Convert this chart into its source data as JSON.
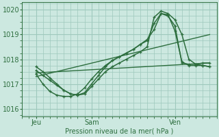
{
  "bg_color": "#cce8e0",
  "grid_color": "#9ec8bc",
  "line_color": "#2d6e3e",
  "title": "Pression niveau de la mer( hPa )",
  "ylim": [
    1015.7,
    1020.3
  ],
  "yticks": [
    1016,
    1017,
    1018,
    1019,
    1020
  ],
  "xlim": [
    0,
    56
  ],
  "xtick_positions": [
    4,
    20,
    44
  ],
  "xtick_labels": [
    "Jeu",
    "Sam",
    "Ven"
  ],
  "xminor": 2,
  "yminor": 0.25,
  "series": [
    {
      "x": [
        4,
        54
      ],
      "y": [
        1017.45,
        1017.85
      ],
      "marker": null,
      "lw": 1.0
    },
    {
      "x": [
        4,
        54
      ],
      "y": [
        1017.3,
        1019.0
      ],
      "marker": null,
      "lw": 1.0
    },
    {
      "x": [
        4,
        6,
        8,
        10,
        12,
        14,
        16,
        18,
        20,
        22,
        24,
        26,
        28,
        30,
        32,
        34,
        36,
        38,
        40,
        42,
        44,
        46,
        48,
        50,
        52,
        54
      ],
      "y": [
        1017.55,
        1017.35,
        1017.15,
        1016.95,
        1016.75,
        1016.6,
        1016.55,
        1016.6,
        1016.9,
        1017.2,
        1017.5,
        1017.7,
        1017.85,
        1018.0,
        1018.15,
        1018.3,
        1018.5,
        1019.7,
        1019.95,
        1019.85,
        1019.6,
        1019.0,
        1018.0,
        1017.8,
        1017.75,
        1017.7
      ],
      "marker": "+",
      "lw": 1.1
    },
    {
      "x": [
        4,
        6,
        8,
        10,
        12,
        14,
        16,
        18,
        20,
        22,
        24,
        26,
        28,
        30,
        32,
        34,
        36,
        38,
        40,
        42,
        44,
        46,
        48,
        50,
        52,
        54
      ],
      "y": [
        1017.7,
        1017.5,
        1017.25,
        1017.0,
        1016.75,
        1016.6,
        1016.55,
        1016.65,
        1017.0,
        1017.35,
        1017.7,
        1017.95,
        1018.1,
        1018.25,
        1018.4,
        1018.6,
        1018.75,
        1019.45,
        1019.85,
        1019.75,
        1019.35,
        1017.85,
        1017.8,
        1017.8,
        1017.85,
        1017.85
      ],
      "marker": "+",
      "lw": 1.1
    },
    {
      "x": [
        4,
        6,
        8,
        10,
        12,
        14,
        16,
        18,
        20,
        22,
        24,
        26,
        28,
        30,
        32,
        34,
        36,
        38,
        40,
        42,
        44,
        46,
        48,
        50,
        52,
        54
      ],
      "y": [
        1017.4,
        1017.0,
        1016.7,
        1016.55,
        1016.5,
        1016.5,
        1016.6,
        1016.85,
        1017.2,
        1017.5,
        1017.75,
        1017.95,
        1018.1,
        1018.25,
        1018.4,
        1018.6,
        1018.8,
        1019.2,
        1019.85,
        1019.8,
        1019.15,
        1017.9,
        1017.75,
        1017.75,
        1017.75,
        1017.7
      ],
      "marker": "+",
      "lw": 1.1
    }
  ]
}
